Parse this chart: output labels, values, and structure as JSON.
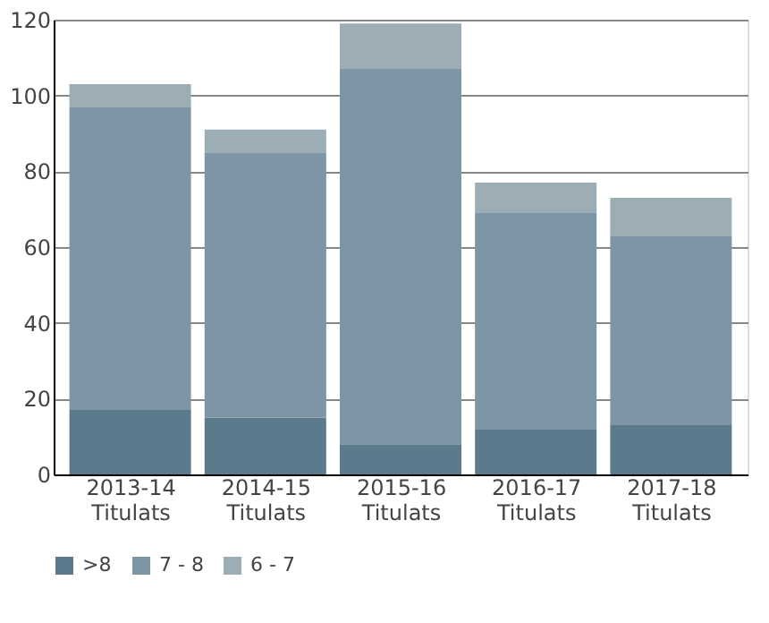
{
  "chart_data": {
    "type": "bar",
    "stacked": true,
    "categories": [
      "2013-14 Titulats",
      "2014-15 Titulats",
      "2015-16 Titulats",
      "2016-17 Titulats",
      "2017-18 Titulats"
    ],
    "series": [
      {
        "name": ">8",
        "color": "#5b7b8c",
        "values": [
          17,
          15,
          8,
          12,
          13
        ]
      },
      {
        "name": "7 - 8",
        "color": "#7d95a4",
        "values": [
          80,
          70,
          99,
          57,
          50
        ]
      },
      {
        "name": "6 - 7",
        "color": "#9dadb6",
        "values": [
          6,
          6,
          12,
          8,
          10
        ]
      }
    ],
    "ylim": [
      0,
      120
    ],
    "yticks": [
      0,
      20,
      40,
      60,
      80,
      100,
      120
    ],
    "grid": "y",
    "legend": "bottom"
  }
}
